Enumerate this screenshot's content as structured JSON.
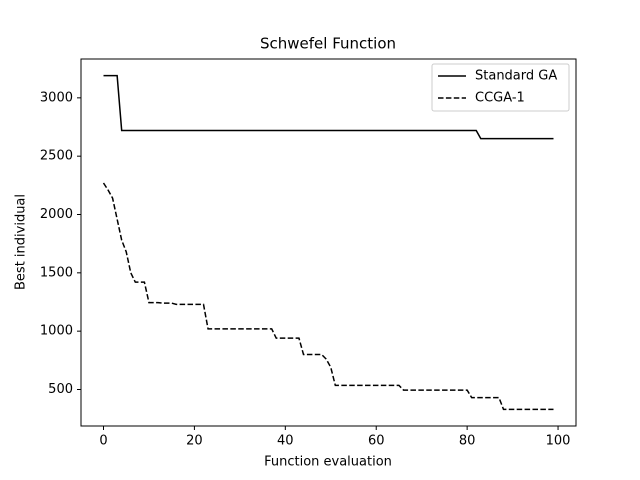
{
  "chart_data": {
    "type": "line",
    "title": "Schwefel Function",
    "x_label": "Function evaluation",
    "y_label": "Best individual",
    "x": [
      0,
      1,
      2,
      3,
      4,
      5,
      6,
      7,
      8,
      9,
      10,
      11,
      12,
      13,
      14,
      15,
      16,
      17,
      18,
      19,
      20,
      21,
      22,
      23,
      24,
      25,
      26,
      27,
      28,
      29,
      30,
      31,
      32,
      33,
      34,
      35,
      36,
      37,
      38,
      39,
      40,
      41,
      42,
      43,
      44,
      45,
      46,
      47,
      48,
      49,
      50,
      51,
      52,
      53,
      54,
      55,
      56,
      57,
      58,
      59,
      60,
      61,
      62,
      63,
      64,
      65,
      66,
      67,
      68,
      69,
      70,
      71,
      72,
      73,
      74,
      75,
      76,
      77,
      78,
      79,
      80,
      81,
      82,
      83,
      84,
      85,
      86,
      87,
      88,
      89,
      90,
      91,
      92,
      93,
      94,
      95,
      96,
      97,
      98,
      99
    ],
    "series": [
      {
        "name": "Standard GA",
        "color": "#000000",
        "linestyle": "solid",
        "values": [
          3190,
          3190,
          3190,
          3190,
          2720,
          2720,
          2720,
          2720,
          2720,
          2720,
          2720,
          2720,
          2720,
          2720,
          2720,
          2720,
          2720,
          2720,
          2720,
          2720,
          2720,
          2720,
          2720,
          2720,
          2720,
          2720,
          2720,
          2720,
          2720,
          2720,
          2720,
          2720,
          2720,
          2720,
          2720,
          2720,
          2720,
          2720,
          2720,
          2720,
          2720,
          2720,
          2720,
          2720,
          2720,
          2720,
          2720,
          2720,
          2720,
          2720,
          2720,
          2720,
          2720,
          2720,
          2720,
          2720,
          2720,
          2720,
          2720,
          2720,
          2720,
          2720,
          2720,
          2720,
          2720,
          2720,
          2720,
          2720,
          2720,
          2720,
          2720,
          2720,
          2720,
          2720,
          2720,
          2720,
          2720,
          2720,
          2720,
          2720,
          2720,
          2720,
          2720,
          2650,
          2650,
          2650,
          2650,
          2650,
          2650,
          2650,
          2650,
          2650,
          2650,
          2650,
          2650,
          2650,
          2650,
          2650,
          2650,
          2650
        ]
      },
      {
        "name": "CCGA-1",
        "color": "#000000",
        "linestyle": "dashed",
        "values": [
          2270,
          2210,
          2140,
          1960,
          1780,
          1680,
          1500,
          1420,
          1420,
          1420,
          1245,
          1245,
          1245,
          1240,
          1240,
          1240,
          1230,
          1230,
          1230,
          1230,
          1230,
          1230,
          1230,
          1020,
          1020,
          1020,
          1020,
          1020,
          1020,
          1020,
          1020,
          1020,
          1020,
          1020,
          1020,
          1020,
          1020,
          1020,
          940,
          940,
          940,
          940,
          940,
          940,
          800,
          800,
          800,
          800,
          800,
          760,
          690,
          535,
          535,
          535,
          535,
          535,
          535,
          535,
          535,
          535,
          535,
          535,
          535,
          535,
          535,
          535,
          495,
          495,
          495,
          495,
          495,
          495,
          495,
          495,
          495,
          495,
          495,
          495,
          495,
          495,
          495,
          430,
          430,
          430,
          430,
          430,
          430,
          430,
          330,
          330,
          330,
          330,
          330,
          330,
          330,
          330,
          330,
          330,
          330,
          330
        ]
      }
    ],
    "xlim": [
      -4.95,
      103.95
    ],
    "ylim": [
      187,
      3333
    ],
    "xticks": [
      0,
      20,
      40,
      60,
      80,
      100
    ],
    "yticks": [
      500,
      1000,
      1500,
      2000,
      2500,
      3000
    ],
    "legend": "upper right"
  }
}
